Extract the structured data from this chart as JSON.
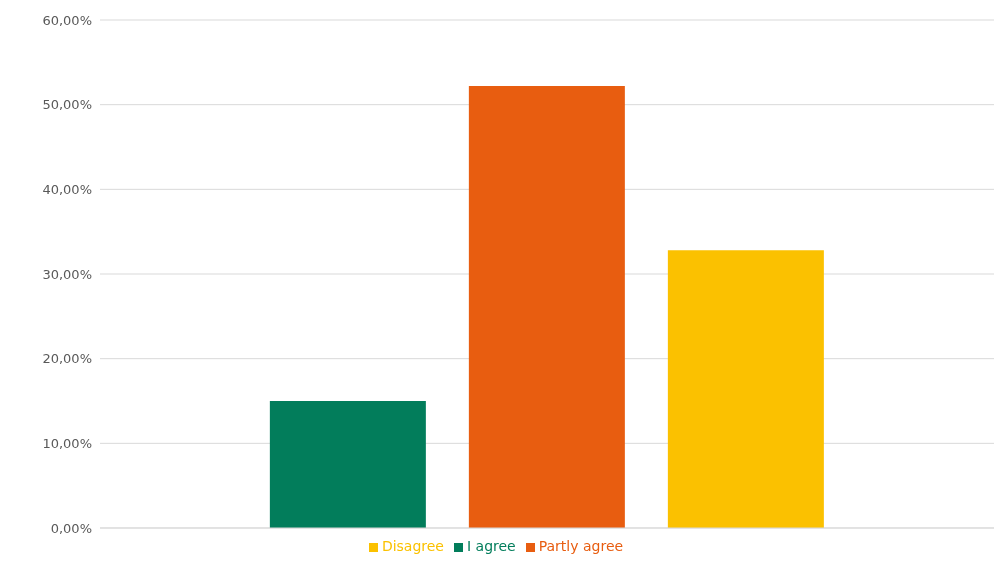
{
  "chart_data": {
    "type": "bar",
    "categories": [
      null
    ],
    "series": [
      {
        "name": "I agree",
        "color": "#027d5b",
        "values": [
          15.0
        ]
      },
      {
        "name": "Partly agree",
        "color": "#e85d10",
        "values": [
          52.2
        ]
      },
      {
        "name": "Disagree",
        "color": "#fbc100",
        "values": [
          32.8
        ]
      }
    ],
    "ylim": [
      0,
      60
    ],
    "yticks": [
      {
        "value": 0,
        "label": "0,00%"
      },
      {
        "value": 10,
        "label": "10,00%"
      },
      {
        "value": 20,
        "label": "20,00%"
      },
      {
        "value": 30,
        "label": "30,00%"
      },
      {
        "value": 40,
        "label": "40,00%"
      },
      {
        "value": 50,
        "label": "50,00%"
      },
      {
        "value": 60,
        "label": "60,00%"
      }
    ],
    "grid": "y",
    "legend": "bottom"
  }
}
